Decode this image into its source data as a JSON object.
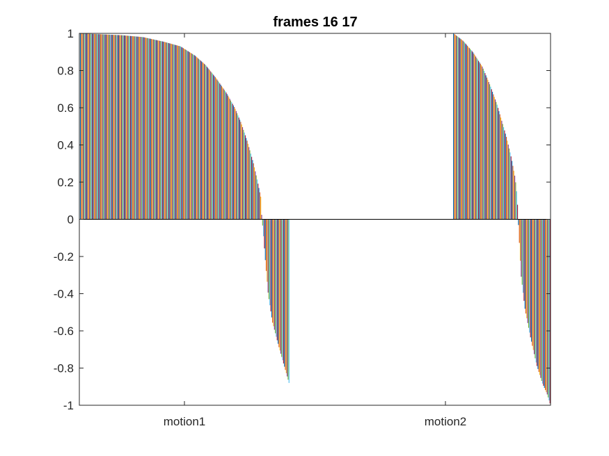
{
  "chart_data": {
    "type": "bar",
    "title": "frames 16 17",
    "xlabel": "",
    "ylabel": "",
    "ylim": [
      -1,
      1
    ],
    "yticks": [
      -1,
      -0.8,
      -0.6,
      -0.4,
      -0.2,
      0,
      0.2,
      0.4,
      0.6,
      0.8,
      1
    ],
    "ytick_labels": [
      "-1",
      "-0.8",
      "-0.6",
      "-0.4",
      "-0.2",
      "0",
      "0.2",
      "0.4",
      "0.6",
      "0.8",
      "1"
    ],
    "categories": [
      "motion1",
      "motion2"
    ],
    "grid": false,
    "legend": "none",
    "series_colors": [
      "#0072BD",
      "#D95319",
      "#EDB120",
      "#7E2F8E",
      "#77AC30",
      "#4DBEEE",
      "#A2142F"
    ],
    "groups": [
      {
        "category": "motion1",
        "curve_points": [
          [
            0,
            1.0
          ],
          [
            0.1,
            0.995
          ],
          [
            0.2,
            0.99
          ],
          [
            0.3,
            0.98
          ],
          [
            0.4,
            0.955
          ],
          [
            0.48,
            0.93
          ],
          [
            0.55,
            0.88
          ],
          [
            0.6,
            0.83
          ],
          [
            0.65,
            0.76
          ],
          [
            0.7,
            0.68
          ],
          [
            0.74,
            0.6
          ],
          [
            0.77,
            0.52
          ],
          [
            0.8,
            0.42
          ],
          [
            0.83,
            0.3
          ],
          [
            0.85,
            0.2
          ],
          [
            0.865,
            0.12
          ],
          [
            0.87,
            0.0
          ],
          [
            0.875,
            -0.05
          ],
          [
            0.885,
            -0.2
          ],
          [
            0.9,
            -0.4
          ],
          [
            0.92,
            -0.55
          ],
          [
            0.95,
            -0.68
          ],
          [
            0.98,
            -0.8
          ],
          [
            1.0,
            -0.88
          ]
        ]
      },
      {
        "category": "motion2",
        "curve_points": [
          [
            0,
            1.0
          ],
          [
            0.1,
            0.96
          ],
          [
            0.2,
            0.9
          ],
          [
            0.3,
            0.82
          ],
          [
            0.38,
            0.72
          ],
          [
            0.45,
            0.62
          ],
          [
            0.5,
            0.53
          ],
          [
            0.55,
            0.44
          ],
          [
            0.6,
            0.33
          ],
          [
            0.64,
            0.22
          ],
          [
            0.66,
            0.12
          ],
          [
            0.67,
            0.0
          ],
          [
            0.68,
            -0.1
          ],
          [
            0.7,
            -0.3
          ],
          [
            0.74,
            -0.48
          ],
          [
            0.8,
            -0.64
          ],
          [
            0.86,
            -0.78
          ],
          [
            0.92,
            -0.88
          ],
          [
            0.97,
            -0.94
          ],
          [
            1.0,
            -0.99
          ]
        ]
      }
    ]
  }
}
